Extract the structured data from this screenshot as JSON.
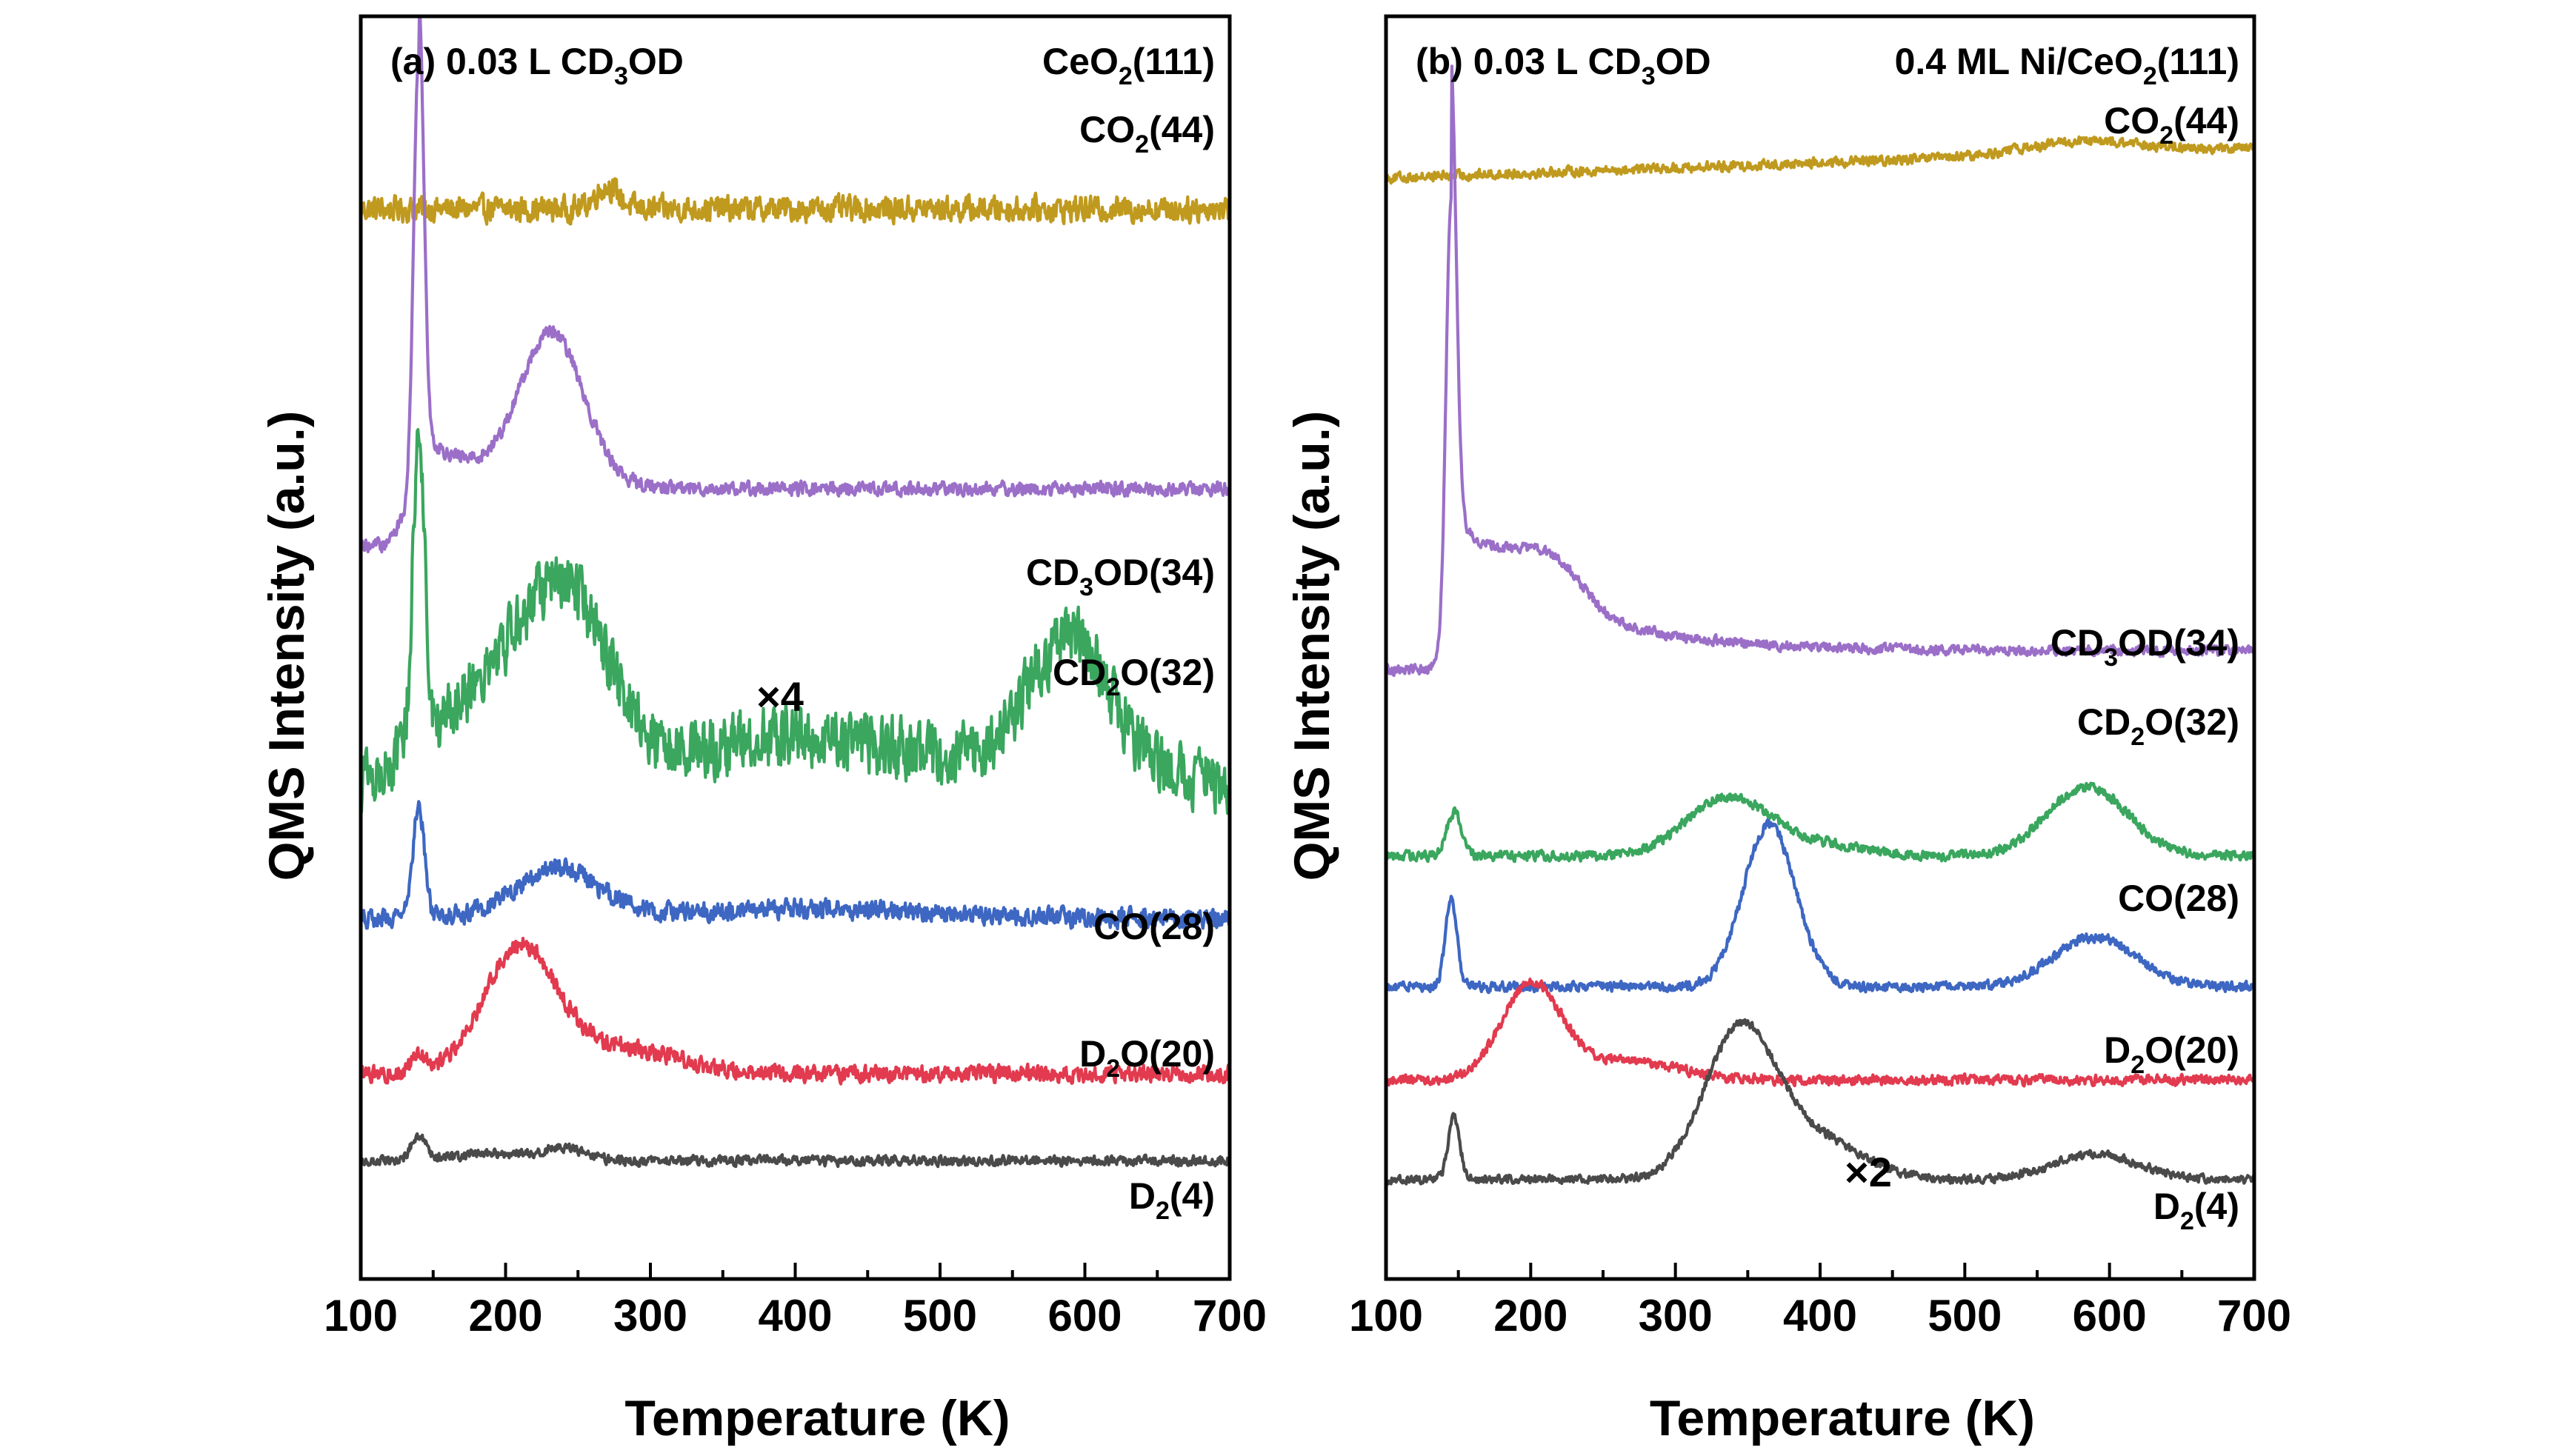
{
  "figure": {
    "ylabel": "QMS Intensity (a.u.)",
    "xlabel": "Temperature (K)",
    "xticks": [
      100,
      200,
      300,
      400,
      500,
      600,
      700
    ]
  },
  "colors": {
    "co2": "#c09a1e",
    "cd3od": "#9b6fc8",
    "cd2o": "#3aa65e",
    "co": "#3d67c2",
    "d2o": "#e23a4f",
    "d2": "#4a4a4a",
    "axis": "#000000"
  },
  "chart_data": [
    {
      "type": "line",
      "panel_label": "(a) 0.03 L CD3OD",
      "sample_label": "CeO2(111)",
      "xlabel": "Temperature (K)",
      "ylabel": "QMS Intensity (a.u.)",
      "xlim": [
        100,
        700
      ],
      "scale_annotation": "×4",
      "series": [
        {
          "name": "CO2(44)",
          "color_key": "co2",
          "offset": 8.6,
          "noise": 0.09,
          "peaks": [
            [
              270,
              0.18,
              8
            ]
          ]
        },
        {
          "name": "CD3OD(34)",
          "color_key": "cd3od",
          "offset": 5.9,
          "noise": 0.05,
          "onset": [
            118,
            140,
            0.45
          ],
          "tail": [
            0.45,
            45
          ],
          "peaks": [
            [
              140,
              3.5,
              3.5
            ],
            [
              232,
              1.2,
              22
            ]
          ]
        },
        {
          "name": "CD2O(32)",
          "color_key": "cd2o",
          "offset": 4.0,
          "noise": 0.22,
          "peaks": [
            [
              140,
              2.6,
              4
            ],
            [
              180,
              0.6,
              35
            ],
            [
              240,
              1.4,
              30
            ],
            [
              400,
              0.35,
              90
            ],
            [
              590,
              1.1,
              30
            ]
          ]
        },
        {
          "name": "CO(28)",
          "color_key": "co",
          "offset": 2.9,
          "noise": 0.07,
          "peaks": [
            [
              140,
              0.9,
              4
            ],
            [
              235,
              0.4,
              28
            ],
            [
              400,
              0.08,
              80
            ]
          ]
        },
        {
          "name": "D2O(20)",
          "color_key": "d2o",
          "offset": 1.65,
          "noise": 0.06,
          "peaks": [
            [
              140,
              0.15,
              5
            ],
            [
              210,
              1.0,
              25
            ],
            [
              280,
              0.2,
              40
            ]
          ]
        },
        {
          "name": "D2(4)",
          "color_key": "d2",
          "offset": 0.95,
          "noise": 0.035,
          "peaks": [
            [
              140,
              0.2,
              5
            ],
            [
              240,
              0.1,
              15
            ],
            [
              190,
              0.06,
              25
            ]
          ]
        }
      ]
    },
    {
      "type": "line",
      "panel_label": "(b) 0.03 L CD3OD",
      "sample_label": "0.4 ML Ni/CeO2(111)",
      "xlabel": "Temperature (K)",
      "ylabel": "QMS Intensity (a.u.)",
      "xlim": [
        100,
        700
      ],
      "scale_annotation": "×2",
      "series": [
        {
          "name": "CO2(44)",
          "color_key": "co2",
          "offset": 8.85,
          "noise": 0.035,
          "slope": 0.0004,
          "peaks": [
            [
              580,
              0.1,
              40
            ]
          ]
        },
        {
          "name": "CD3OD(34)",
          "color_key": "cd3od",
          "offset": 4.9,
          "noise": 0.035,
          "onset": [
            128,
            143,
            0.15
          ],
          "tail": [
            1.1,
            70
          ],
          "peaks": [
            [
              145,
              3.6,
              3.5
            ],
            [
              200,
              0.25,
              20
            ],
            [
              225,
              0.2,
              18
            ]
          ]
        },
        {
          "name": "CD2O(32)",
          "color_key": "cd2o",
          "offset": 3.4,
          "noise": 0.035,
          "peaks": [
            [
              147,
              0.35,
              5
            ],
            [
              335,
              0.45,
              28
            ],
            [
              390,
              0.1,
              35
            ],
            [
              585,
              0.55,
              28
            ]
          ]
        },
        {
          "name": "CO(28)",
          "color_key": "co",
          "offset": 2.35,
          "noise": 0.035,
          "peaks": [
            [
              145,
              0.7,
              4
            ],
            [
              365,
              1.3,
              18
            ],
            [
              590,
              0.4,
              28
            ]
          ]
        },
        {
          "name": "D2O(20)",
          "color_key": "d2o",
          "offset": 1.6,
          "noise": 0.035,
          "peaks": [
            [
              200,
              0.75,
              20
            ],
            [
              260,
              0.15,
              40
            ]
          ]
        },
        {
          "name": "D2(4)",
          "color_key": "d2",
          "offset": 0.8,
          "noise": 0.03,
          "peaks": [
            [
              147,
              0.5,
              4
            ],
            [
              345,
              1.2,
              25
            ],
            [
              400,
              0.3,
              30
            ],
            [
              590,
              0.2,
              30
            ]
          ]
        }
      ]
    }
  ]
}
